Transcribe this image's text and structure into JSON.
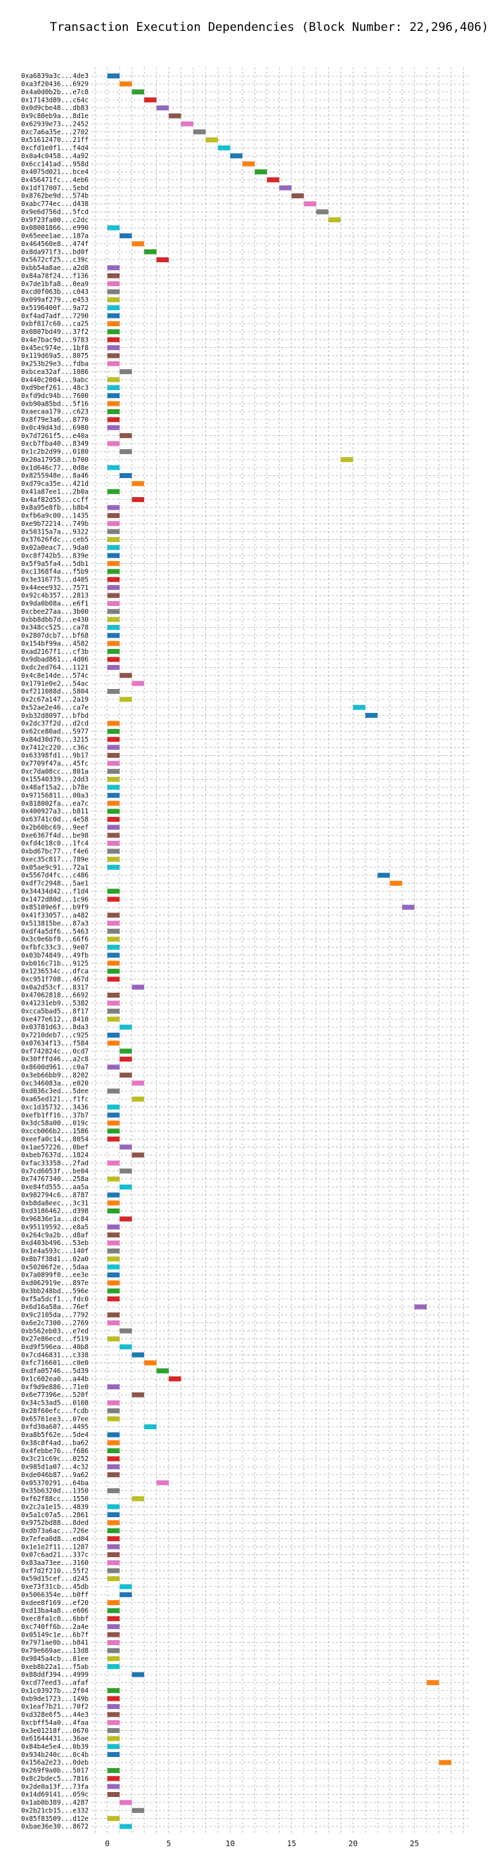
{
  "chart_data": {
    "type": "gantt",
    "title": "Transaction Execution Dependencies (Block Number: 22,296,406)",
    "xlabel": "",
    "ylabel": "",
    "xlim": [
      -1.3,
      29.6
    ],
    "xticks": [
      0,
      5,
      10,
      15,
      20,
      25
    ],
    "grid": true,
    "bar_duration": 1,
    "palette": [
      "#1f77b4",
      "#ff7f0e",
      "#2ca02c",
      "#d62728",
      "#9467bd",
      "#8c564b",
      "#e377c2",
      "#7f7f7f",
      "#bcbd22",
      "#17becf"
    ],
    "transactions": [
      {
        "label": "0xa6839a3c...4de3",
        "start": 0
      },
      {
        "label": "0xa3f20436...6929",
        "start": 1
      },
      {
        "label": "0x4a0d0b2b...e7c8",
        "start": 2
      },
      {
        "label": "0x17143d89...c64c",
        "start": 3
      },
      {
        "label": "0x0d9cbe48...db83",
        "start": 4
      },
      {
        "label": "0x9c80eb9a...8d1e",
        "start": 5
      },
      {
        "label": "0x62939e73...2452",
        "start": 6
      },
      {
        "label": "0xc7a6a35e...2702",
        "start": 7
      },
      {
        "label": "0x51612470...21ff",
        "start": 8
      },
      {
        "label": "0xcfd1e0f1...f4d4",
        "start": 9
      },
      {
        "label": "0x0a4c0458...4a92",
        "start": 10
      },
      {
        "label": "0x6cc141ad...958d",
        "start": 11
      },
      {
        "label": "0x4075d021...bce4",
        "start": 12
      },
      {
        "label": "0x456471fc...4eb6",
        "start": 13
      },
      {
        "label": "0x1df17007...5ebd",
        "start": 14
      },
      {
        "label": "0x8762be9d...574b",
        "start": 15
      },
      {
        "label": "0xabc774ec...d438",
        "start": 16
      },
      {
        "label": "0x9e6d756d...5fcd",
        "start": 17
      },
      {
        "label": "0x9f23fa00...c2dc",
        "start": 18
      },
      {
        "label": "0x08001866...e990",
        "start": 0
      },
      {
        "label": "0x65eee1ae...187a",
        "start": 1
      },
      {
        "label": "0x464560e8...474f",
        "start": 2
      },
      {
        "label": "0x8da971f3...bd0f",
        "start": 3
      },
      {
        "label": "0x5672cf25...c39c",
        "start": 4
      },
      {
        "label": "0xbb54a8ae...a2d8",
        "start": 0
      },
      {
        "label": "0x84a78f24...f136",
        "start": 0
      },
      {
        "label": "0x7de1bfa8...0ea9",
        "start": 0
      },
      {
        "label": "0xcd0f063b...c043",
        "start": 0
      },
      {
        "label": "0x099af279...e453",
        "start": 0
      },
      {
        "label": "0x5196400f...9a72",
        "start": 0
      },
      {
        "label": "0xf4ad7adf...7290",
        "start": 0
      },
      {
        "label": "0xbf817c60...ca25",
        "start": 0
      },
      {
        "label": "0x0807bd49...37f2",
        "start": 0
      },
      {
        "label": "0x4e7bac9d...9783",
        "start": 0
      },
      {
        "label": "0x45ec974e...1bf8",
        "start": 0
      },
      {
        "label": "0x119d69a5...8075",
        "start": 0
      },
      {
        "label": "0x253b29e3...fdba",
        "start": 0
      },
      {
        "label": "0xbcea32af...1086",
        "start": 1
      },
      {
        "label": "0x440c2004...9abc",
        "start": 0
      },
      {
        "label": "0xd9bef261...48c3",
        "start": 0
      },
      {
        "label": "0xfd9dc94b...7600",
        "start": 0
      },
      {
        "label": "0xb90a85bd...5f16",
        "start": 0
      },
      {
        "label": "0xaecaa179...c623",
        "start": 0
      },
      {
        "label": "0x8f79e3a6...8770",
        "start": 0
      },
      {
        "label": "0x0c49d43d...6980",
        "start": 0
      },
      {
        "label": "0x7d7261f5...e40a",
        "start": 1
      },
      {
        "label": "0xcb7fba40...8349",
        "start": 0
      },
      {
        "label": "0x1c2b2d99...0180",
        "start": 1
      },
      {
        "label": "0x20a17958...b700",
        "start": 19
      },
      {
        "label": "0x1d646c77...0d8e",
        "start": 0
      },
      {
        "label": "0x8255948e...8a46",
        "start": 1
      },
      {
        "label": "0xd79ca35e...421d",
        "start": 2
      },
      {
        "label": "0x41a87ee1...2b0a",
        "start": 0
      },
      {
        "label": "0x4af82d55...ccff",
        "start": 2
      },
      {
        "label": "0x8a95e8fb...b8b4",
        "start": 0
      },
      {
        "label": "0xfb6a9c00...1435",
        "start": 0
      },
      {
        "label": "0xe9b72214...749b",
        "start": 0
      },
      {
        "label": "0x50315a7a...9322",
        "start": 0
      },
      {
        "label": "0x37626fdc...ceb5",
        "start": 0
      },
      {
        "label": "0x02a0eac7...9da0",
        "start": 0
      },
      {
        "label": "0xc8f742b5...839e",
        "start": 0
      },
      {
        "label": "0x5f9a5fa4...5db1",
        "start": 0
      },
      {
        "label": "0xc1368f4a...f5b9",
        "start": 0
      },
      {
        "label": "0x3e316775...d405",
        "start": 0
      },
      {
        "label": "0x44eee932...7571",
        "start": 0
      },
      {
        "label": "0x92c4b357...2813",
        "start": 0
      },
      {
        "label": "0x9da0b08a...e6f1",
        "start": 0
      },
      {
        "label": "0xcbee27aa...3b00",
        "start": 0
      },
      {
        "label": "0xbb8dbb7d...e430",
        "start": 0
      },
      {
        "label": "0x348cc525...ca78",
        "start": 0
      },
      {
        "label": "0x2807dcb7...bf68",
        "start": 0
      },
      {
        "label": "0x154bf99a...4582",
        "start": 0
      },
      {
        "label": "0xad2167f1...cf3b",
        "start": 0
      },
      {
        "label": "0x9dbad861...4d06",
        "start": 0
      },
      {
        "label": "0xdc2ed764...1121",
        "start": 0
      },
      {
        "label": "0x4c8e14de...574c",
        "start": 1
      },
      {
        "label": "0x1791e0e2...54ac",
        "start": 2
      },
      {
        "label": "0xf211088d...5804",
        "start": 0
      },
      {
        "label": "0x2c67a147...2a19",
        "start": 1
      },
      {
        "label": "0x52ae2e46...ca7e",
        "start": 20
      },
      {
        "label": "0xb32d8097...bfbd",
        "start": 21
      },
      {
        "label": "0x2dc37f2d...d2cd",
        "start": 0
      },
      {
        "label": "0x62ce80ad...5977",
        "start": 0
      },
      {
        "label": "0x84d30d76...3215",
        "start": 0
      },
      {
        "label": "0x7412c220...c36c",
        "start": 0
      },
      {
        "label": "0x63398fd1...9b17",
        "start": 0
      },
      {
        "label": "0x7709f47a...45fc",
        "start": 0
      },
      {
        "label": "0xc7da08cc...801a",
        "start": 0
      },
      {
        "label": "0x15540339...2dd3",
        "start": 0
      },
      {
        "label": "0x48af15a2...b78e",
        "start": 0
      },
      {
        "label": "0x97156811...00a3",
        "start": 0
      },
      {
        "label": "0x818002fa...ea7c",
        "start": 0
      },
      {
        "label": "0x400927a3...b811",
        "start": 0
      },
      {
        "label": "0x63741c0d...4e58",
        "start": 0
      },
      {
        "label": "0x2b60bc69...9eef",
        "start": 0
      },
      {
        "label": "0xe6367f4d...be98",
        "start": 0
      },
      {
        "label": "0xfd4c18c0...1fc4",
        "start": 0
      },
      {
        "label": "0xbd67bc77...f4e6",
        "start": 0
      },
      {
        "label": "0xec35c817...789e",
        "start": 0
      },
      {
        "label": "0x05ae9c91...72a1",
        "start": 0
      },
      {
        "label": "0x5567d4fc...c486",
        "start": 22
      },
      {
        "label": "0xdf7c2948...5ae1",
        "start": 23
      },
      {
        "label": "0x34434d42...f1d4",
        "start": 0
      },
      {
        "label": "0x1472d80d...1c96",
        "start": 0
      },
      {
        "label": "0x85109e6f...b9f9",
        "start": 24
      },
      {
        "label": "0x41f33057...a482",
        "start": 0
      },
      {
        "label": "0x513815be...87a3",
        "start": 0
      },
      {
        "label": "0xdf4a5df6...5463",
        "start": 0
      },
      {
        "label": "0x3c0e6bf0...66f6",
        "start": 0
      },
      {
        "label": "0xfbfc33c3...9e07",
        "start": 0
      },
      {
        "label": "0x03b74849...49fb",
        "start": 0
      },
      {
        "label": "0xb016c71b...9125",
        "start": 0
      },
      {
        "label": "0x1236534c...dfca",
        "start": 0
      },
      {
        "label": "0xc951f708...467d",
        "start": 0
      },
      {
        "label": "0x0a2d53cf...8317",
        "start": 2
      },
      {
        "label": "0x47062818...6692",
        "start": 0
      },
      {
        "label": "0x41231eb9...5382",
        "start": 0
      },
      {
        "label": "0xcca5bad5...8f17",
        "start": 0
      },
      {
        "label": "0xe477e612...8410",
        "start": 0
      },
      {
        "label": "0x03781d63...8da3",
        "start": 1
      },
      {
        "label": "0x7210deb7...c925",
        "start": 0
      },
      {
        "label": "0x07634f13...f584",
        "start": 0
      },
      {
        "label": "0xf742824c...0cd7",
        "start": 1
      },
      {
        "label": "0x30fffd46...a2c8",
        "start": 1
      },
      {
        "label": "0x8600d961...c0a7",
        "start": 0
      },
      {
        "label": "0x3eb66bb9...8202",
        "start": 1
      },
      {
        "label": "0xc346083a...e020",
        "start": 2
      },
      {
        "label": "0xd036c3ed...5dee",
        "start": 0
      },
      {
        "label": "0xa65ed121...f1fc",
        "start": 2
      },
      {
        "label": "0xc1d35732...3436",
        "start": 0
      },
      {
        "label": "0xefb1ff16...37b7",
        "start": 0
      },
      {
        "label": "0x3dc58a00...019c",
        "start": 0
      },
      {
        "label": "0xccb066b2...1586",
        "start": 0
      },
      {
        "label": "0xeefa0c14...8054",
        "start": 0
      },
      {
        "label": "0x1ae57226...0bef",
        "start": 1
      },
      {
        "label": "0xbeb7637d...1824",
        "start": 2
      },
      {
        "label": "0xfac33358...2fad",
        "start": 0
      },
      {
        "label": "0x7cd6053f...be04",
        "start": 1
      },
      {
        "label": "0x74767340...258a",
        "start": 0
      },
      {
        "label": "0xe84fd555...aa5a",
        "start": 1
      },
      {
        "label": "0x982794c6...8787",
        "start": 0
      },
      {
        "label": "0xb8da8eec...3c31",
        "start": 0
      },
      {
        "label": "0xd3186462...d398",
        "start": 0
      },
      {
        "label": "0x96836e1a...dc84",
        "start": 1
      },
      {
        "label": "0x95119592...e8a5",
        "start": 0
      },
      {
        "label": "0x264c9a2b...d8af",
        "start": 0
      },
      {
        "label": "0xd403b496...53eb",
        "start": 0
      },
      {
        "label": "0x1e4a593c...140f",
        "start": 0
      },
      {
        "label": "0x8b7f38d1...02a0",
        "start": 0
      },
      {
        "label": "0x50206f2e...5daa",
        "start": 0
      },
      {
        "label": "0x7a0899f0...ee3e",
        "start": 0
      },
      {
        "label": "0xd062919e...897e",
        "start": 0
      },
      {
        "label": "0x3bb248bd...596e",
        "start": 0
      },
      {
        "label": "0xf5a5dcf1...fdc0",
        "start": 0
      },
      {
        "label": "0x6d16a58a...76ef",
        "start": 25
      },
      {
        "label": "0x9c2105da...7792",
        "start": 0
      },
      {
        "label": "0x6e2c7300...2769",
        "start": 0
      },
      {
        "label": "0xb562eb03...e7ed",
        "start": 1
      },
      {
        "label": "0x27e86ecd...f519",
        "start": 0
      },
      {
        "label": "0xd9f596ea...40b8",
        "start": 1
      },
      {
        "label": "0x7cd46831...c338",
        "start": 2
      },
      {
        "label": "0xfc716601...c0e0",
        "start": 3
      },
      {
        "label": "0xdfa05746...5d39",
        "start": 4
      },
      {
        "label": "0x1c602ea0...a44b",
        "start": 5
      },
      {
        "label": "0xf9d9e886...71e0",
        "start": 0
      },
      {
        "label": "0x6e77396e...520f",
        "start": 2
      },
      {
        "label": "0x34c53ad5...0108",
        "start": 0
      },
      {
        "label": "0x28f60efc...fcdb",
        "start": 0
      },
      {
        "label": "0x65761ee3...07ee",
        "start": 0
      },
      {
        "label": "0xfd30a607...4495",
        "start": 3
      },
      {
        "label": "0xa8b5f62e...5de4",
        "start": 0
      },
      {
        "label": "0x38c8f4ad...ba62",
        "start": 0
      },
      {
        "label": "0x4febbe76...f686",
        "start": 0
      },
      {
        "label": "0x3c21c69c...0252",
        "start": 0
      },
      {
        "label": "0x985d1a07...4c32",
        "start": 0
      },
      {
        "label": "0xde046b87...9a62",
        "start": 0
      },
      {
        "label": "0x05370291...64ba",
        "start": 4
      },
      {
        "label": "0x35b6320d...1350",
        "start": 0
      },
      {
        "label": "0xf62f88cc...1550",
        "start": 2
      },
      {
        "label": "0x2c2a1e15...4839",
        "start": 0
      },
      {
        "label": "0x5a1c07a5...2861",
        "start": 0
      },
      {
        "label": "0x9752bd88...8ded",
        "start": 0
      },
      {
        "label": "0xdb73a6ac...726e",
        "start": 0
      },
      {
        "label": "0x7efea0d8...ed04",
        "start": 0
      },
      {
        "label": "0x1e1e2f11...1287",
        "start": 0
      },
      {
        "label": "0x07c6ad21...337c",
        "start": 0
      },
      {
        "label": "0x83aa73ee...3160",
        "start": 0
      },
      {
        "label": "0xf7d2f210...55f2",
        "start": 0
      },
      {
        "label": "0x59d15cef...d245",
        "start": 0
      },
      {
        "label": "0xe73f31cb...45db",
        "start": 1
      },
      {
        "label": "0x5066354e...b0ff",
        "start": 1
      },
      {
        "label": "0xdee8f169...ef20",
        "start": 0
      },
      {
        "label": "0xd13ba4a8...e606",
        "start": 0
      },
      {
        "label": "0xec8fa1c0...6bbf",
        "start": 0
      },
      {
        "label": "0xc740ff6b...2a4e",
        "start": 0
      },
      {
        "label": "0x05149c1e...6b7f",
        "start": 0
      },
      {
        "label": "0x7971ae0b...b841",
        "start": 0
      },
      {
        "label": "0x79e669ae...13d8",
        "start": 0
      },
      {
        "label": "0x9845a4cb...81ee",
        "start": 0
      },
      {
        "label": "0xeb8b22a1...f5ab",
        "start": 0
      },
      {
        "label": "0x88ddf394...4999",
        "start": 2
      },
      {
        "label": "0xcd77eed3...afaf",
        "start": 26
      },
      {
        "label": "0x1c03927b...2f04",
        "start": 0
      },
      {
        "label": "0xb9de1723...149b",
        "start": 0
      },
      {
        "label": "0x1eaf7b21...70f2",
        "start": 0
      },
      {
        "label": "0xd328e6f5...44e3",
        "start": 0
      },
      {
        "label": "0xcbff54a0...4faa",
        "start": 0
      },
      {
        "label": "0x3e01218f...0670",
        "start": 0
      },
      {
        "label": "0x61644431...36ae",
        "start": 0
      },
      {
        "label": "0x84b4e5e4...0b39",
        "start": 0
      },
      {
        "label": "0x934b240c...0c4b",
        "start": 0
      },
      {
        "label": "0x156a2e23...0deb",
        "start": 27
      },
      {
        "label": "0x269f9a0b...5017",
        "start": 0
      },
      {
        "label": "0x8c2bdec5...7816",
        "start": 0
      },
      {
        "label": "0x2de0a13f...73fa",
        "start": 0
      },
      {
        "label": "0x14d69141...059c",
        "start": 0
      },
      {
        "label": "0x1ab0b389...4287",
        "start": 1
      },
      {
        "label": "0x2b21cb15...e332",
        "start": 2
      },
      {
        "label": "0x85f83509...d12e",
        "start": 0
      },
      {
        "label": "0xbae36e30...8672",
        "start": 1
      }
    ]
  }
}
